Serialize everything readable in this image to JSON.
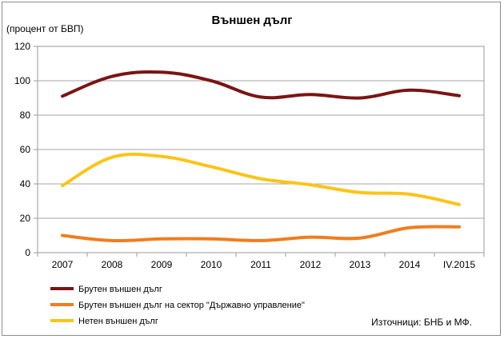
{
  "chart_data": {
    "type": "line",
    "title": "Външен дълг",
    "ylabel": "(процент от БВП)",
    "xlabel": "",
    "categories": [
      "2007",
      "2008",
      "2009",
      "2010",
      "2011",
      "2012",
      "2013",
      "2014",
      "IV.2015"
    ],
    "ylim": [
      0,
      120
    ],
    "yticks": [
      0,
      20,
      40,
      60,
      80,
      100,
      120
    ],
    "grid": true,
    "legend_position": "bottom-left",
    "series": [
      {
        "name": "Брутен външен дълг",
        "color": "#7b1414",
        "values": [
          91,
          102.5,
          105,
          100,
          90.5,
          92,
          90,
          94.5,
          91.3
        ]
      },
      {
        "name": "Брутен външен дълг на сектор \"Държавно управление\"",
        "color": "#f07d1f",
        "values": [
          10,
          7,
          8,
          8,
          7,
          9,
          8.5,
          14.5,
          15
        ]
      },
      {
        "name": "Нетен външен дълг",
        "color": "#fcc418",
        "values": [
          39,
          55.5,
          56,
          50,
          43,
          39.5,
          35,
          34,
          28
        ]
      }
    ],
    "source": "Източници: БНБ и МФ."
  }
}
